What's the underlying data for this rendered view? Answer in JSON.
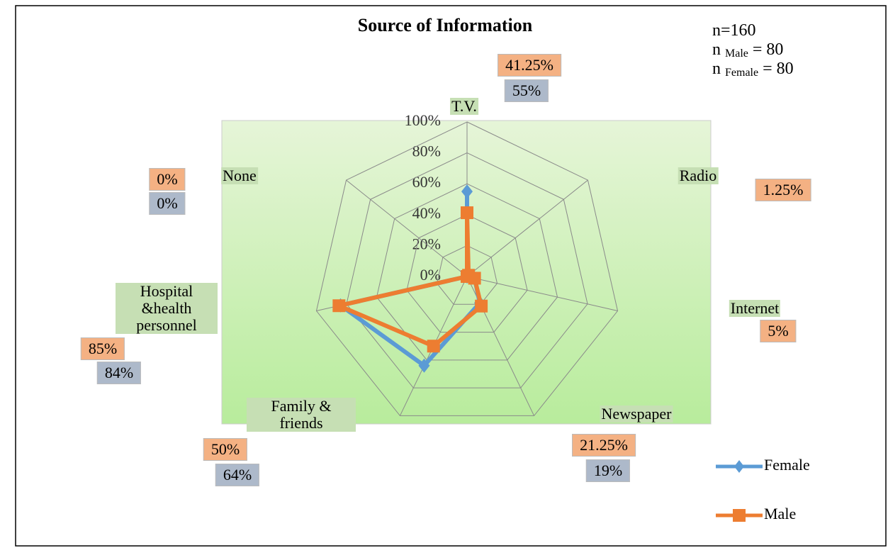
{
  "chart_data": {
    "type": "radar",
    "title": "Source of Information",
    "annotations": [
      {
        "main": "n=160"
      },
      {
        "main": "n",
        "sub": "Male",
        "rest": "= 80"
      },
      {
        "main": "n",
        "sub": "Female",
        "rest": "= 80"
      }
    ],
    "categories": [
      "T.V.",
      "Radio",
      "Internet",
      "Newspaper",
      "Family & friends",
      "Hospital &health personnel",
      "None"
    ],
    "series": [
      {
        "name": "Female",
        "color": "#5b9bd5",
        "marker": "diamond",
        "label_color": "#adb9ca",
        "values": [
          55,
          0,
          5,
          19,
          64,
          84,
          0
        ],
        "value_labels": [
          "55%",
          null,
          null,
          "19%",
          "64%",
          "84%",
          "0%"
        ]
      },
      {
        "name": "Male",
        "color": "#ed7d31",
        "marker": "square",
        "label_color": "#f4b183",
        "values": [
          41.25,
          1.25,
          5,
          21.25,
          50,
          85,
          0
        ],
        "value_labels": [
          "41.25%",
          "1.25%",
          "5%",
          "21.25%",
          "50%",
          "85%",
          "0%"
        ]
      }
    ],
    "rlim": [
      0,
      100
    ],
    "rticks": [
      {
        "value": 0,
        "label": "0%"
      },
      {
        "value": 20,
        "label": "20%"
      },
      {
        "value": 40,
        "label": "40%"
      },
      {
        "value": 60,
        "label": "60%"
      },
      {
        "value": 80,
        "label": "80%"
      },
      {
        "value": 100,
        "label": "100%"
      }
    ],
    "grid": true,
    "legend": "right"
  }
}
